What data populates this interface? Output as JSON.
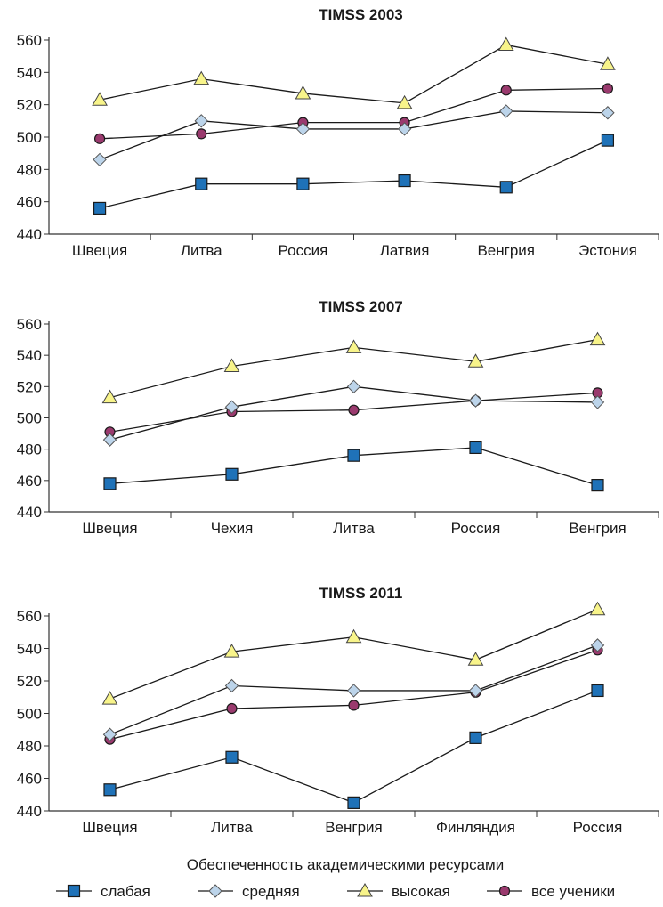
{
  "colors": {
    "weak": "#1f72b8",
    "medium": "#bcd4ea",
    "high": "#f8f48a",
    "all": "#9a3a6e",
    "line": "#1a1a1a",
    "axis": "#333333"
  },
  "chart_data": [
    {
      "type": "line",
      "title": "TIMSS 2003",
      "categories": [
        "Швеция",
        "Литва",
        "Россия",
        "Латвия",
        "Венгрия",
        "Эстония"
      ],
      "ylim": [
        440,
        560
      ],
      "yticks": [
        440,
        460,
        480,
        500,
        520,
        540,
        560
      ],
      "grid": false,
      "series": [
        {
          "key": "weak",
          "values": [
            456,
            471,
            471,
            473,
            469,
            498
          ]
        },
        {
          "key": "medium",
          "values": [
            486,
            510,
            505,
            505,
            516,
            515
          ]
        },
        {
          "key": "high",
          "values": [
            523,
            536,
            527,
            521,
            557,
            545
          ]
        },
        {
          "key": "all",
          "values": [
            499,
            502,
            509,
            509,
            529,
            530
          ]
        }
      ]
    },
    {
      "type": "line",
      "title": "TIMSS 2007",
      "categories": [
        "Швеция",
        "Чехия",
        "Литва",
        "Россия",
        "Венгрия"
      ],
      "ylim": [
        440,
        560
      ],
      "yticks": [
        440,
        460,
        480,
        500,
        520,
        540,
        560
      ],
      "grid": false,
      "series": [
        {
          "key": "weak",
          "values": [
            458,
            464,
            476,
            481,
            457
          ]
        },
        {
          "key": "medium",
          "values": [
            486,
            507,
            520,
            511,
            510
          ]
        },
        {
          "key": "high",
          "values": [
            513,
            533,
            545,
            536,
            550
          ]
        },
        {
          "key": "all",
          "values": [
            491,
            504,
            505,
            511,
            516
          ]
        }
      ]
    },
    {
      "type": "line",
      "title": "TIMSS 2011",
      "categories": [
        "Швеция",
        "Литва",
        "Венгрия",
        "Финляндия",
        "Россия"
      ],
      "ylim": [
        440,
        560
      ],
      "yticks": [
        440,
        460,
        480,
        500,
        520,
        540,
        560
      ],
      "grid": false,
      "series": [
        {
          "key": "weak",
          "values": [
            453,
            473,
            445,
            485,
            514
          ]
        },
        {
          "key": "medium",
          "values": [
            487,
            517,
            514,
            514,
            542
          ]
        },
        {
          "key": "high",
          "values": [
            509,
            538,
            547,
            533,
            564
          ]
        },
        {
          "key": "all",
          "values": [
            484,
            503,
            505,
            513,
            539
          ]
        }
      ]
    }
  ],
  "legend": {
    "title": "Обеспеченность академическими ресурсами",
    "placement": "bottom",
    "items": [
      {
        "key": "weak",
        "label": "слабая",
        "marker": "square"
      },
      {
        "key": "medium",
        "label": "средняя",
        "marker": "diamond"
      },
      {
        "key": "high",
        "label": "высокая",
        "marker": "triangle"
      },
      {
        "key": "all",
        "label": "все ученики",
        "marker": "circle"
      }
    ]
  }
}
